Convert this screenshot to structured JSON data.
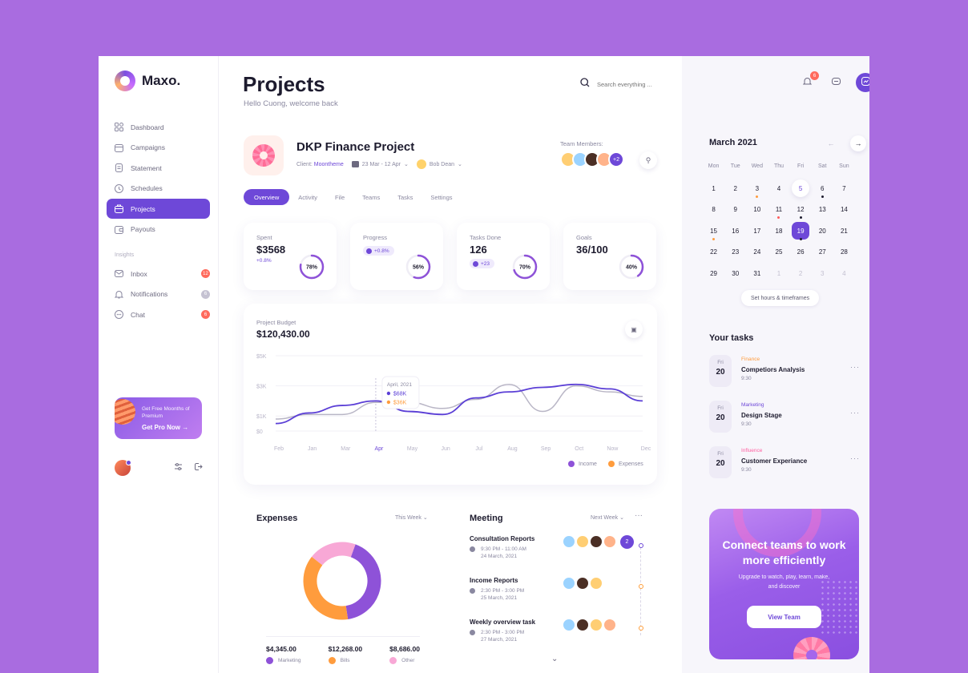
{
  "app": {
    "logo": "Maxo."
  },
  "sidebar": {
    "items": [
      {
        "label": "Dashboard",
        "icon": "grid-icon"
      },
      {
        "label": "Campaigns",
        "icon": "calendar-icon"
      },
      {
        "label": "Statement",
        "icon": "document-icon"
      },
      {
        "label": "Schedules",
        "icon": "clock-icon"
      },
      {
        "label": "Projects",
        "icon": "briefcase-icon",
        "active": true
      },
      {
        "label": "Payouts",
        "icon": "wallet-icon"
      }
    ],
    "section_label": "Insights",
    "insights": [
      {
        "label": "Inbox",
        "icon": "mail-icon",
        "badge": "12",
        "badge_color": "#ff6a5c"
      },
      {
        "label": "Notifications",
        "icon": "bell-icon",
        "badge": "6",
        "badge_color": "#c5c2d2"
      },
      {
        "label": "Chat",
        "icon": "chat-icon",
        "badge": "6",
        "badge_color": "#ff6a5c"
      }
    ],
    "promo": {
      "subtitle": "Get Free Moonths of Premium",
      "cta": "Get Pro Now"
    }
  },
  "header": {
    "title": "Projects",
    "subtitle": "Hello Cuong, welcome back",
    "search_placeholder": "Search everything ..."
  },
  "project": {
    "name": "DKP Finance Project",
    "client_label": "Client:",
    "client": "Moontheme",
    "date_range": "23 Mar - 12 Apr",
    "owner": "Bob Dean",
    "team_label": "Team Members:",
    "team_more": "+2"
  },
  "tabs": [
    "Overview",
    "Activity",
    "File",
    "Teams",
    "Tasks",
    "Settings"
  ],
  "stats": [
    {
      "label": "Spent",
      "value": "$3568",
      "delta": "+0.8%",
      "ring": "78%",
      "pct": 78
    },
    {
      "label": "Progress",
      "chip": "+0.8%",
      "ring": "56%",
      "pct": 56
    },
    {
      "label": "Tasks Done",
      "value": "126",
      "chip": "+23",
      "ring": "70%",
      "pct": 70
    },
    {
      "label": "Goals",
      "value": "36/100",
      "ring": "40%",
      "pct": 40
    }
  ],
  "budget": {
    "label": "Project Budget",
    "value": "$120,430.00",
    "tooltip": {
      "date": "April, 2021",
      "income": "$68K",
      "expenses": "$36K"
    },
    "legend": {
      "income": "Income",
      "expenses": "Expenses"
    }
  },
  "chart_data": {
    "type": "line",
    "x": [
      "Feb",
      "Jan",
      "Mar",
      "Apr",
      "May",
      "Jun",
      "Jul",
      "Aug",
      "Sep",
      "Oct",
      "Now",
      "Dec"
    ],
    "yticks": [
      "$5K",
      "$3K",
      "$1K",
      "$0"
    ],
    "ylim": [
      0,
      5
    ],
    "series": [
      {
        "name": "Income",
        "color": "#5b3fd6",
        "values": [
          0.5,
          1.2,
          1.7,
          2.0,
          1.3,
          1.1,
          2.2,
          2.6,
          2.9,
          3.1,
          2.8,
          2.0
        ]
      },
      {
        "name": "Expenses",
        "color": "#b9b6c6",
        "values": [
          0.8,
          1.1,
          1.1,
          1.9,
          1.9,
          1.5,
          2.1,
          3.1,
          1.3,
          3.0,
          2.6,
          2.3
        ]
      }
    ]
  },
  "expenses": {
    "title": "Expenses",
    "period": "This Week",
    "items": [
      {
        "value": "$4,345.00",
        "label": "Marketing",
        "color": "#8e52d8",
        "share": 0.42
      },
      {
        "value": "$12,268.00",
        "label": "Bills",
        "color": "#ff9c3d",
        "share": 0.38
      },
      {
        "value": "$8,686.00",
        "label": "Other",
        "color": "#f8a8d6",
        "share": 0.2
      }
    ]
  },
  "meeting": {
    "title": "Meeting",
    "period": "Next Week",
    "items": [
      {
        "name": "Consultation Reports",
        "time": "9:30 PM - 11:00 AM",
        "date": "24 March, 2021",
        "more": "2"
      },
      {
        "name": "Income Reports",
        "time": "2:30 PM - 3:00 PM",
        "date": "25 March, 2021"
      },
      {
        "name": "Weekly overview task",
        "time": "2:30 PM - 3:00 PM",
        "date": "27 March, 2021"
      }
    ]
  },
  "topbar": {
    "notif_badge": "6",
    "profile_badge": "6"
  },
  "calendar": {
    "title": "March 2021",
    "weekdays": [
      "Mon",
      "Tue",
      "Wed",
      "Thu",
      "Fri",
      "Sat",
      "Sun"
    ],
    "days": [
      "1",
      "2",
      "3",
      "4",
      "5",
      "6",
      "7",
      "8",
      "9",
      "10",
      "11",
      "12",
      "13",
      "14",
      "15",
      "16",
      "17",
      "18",
      "19",
      "20",
      "21",
      "22",
      "23",
      "24",
      "25",
      "26",
      "27",
      "28",
      "29",
      "30",
      "31",
      "1",
      "2",
      "3",
      "4"
    ],
    "cta": "Set hours & timeframes"
  },
  "tasks": {
    "title": "Your tasks",
    "items": [
      {
        "dow": "Fri",
        "day": "20",
        "category": "Finance",
        "cat_color": "#ff9c3d",
        "name": "Competiors Analysis",
        "time": "9:30"
      },
      {
        "dow": "Fri",
        "day": "20",
        "category": "Marketing",
        "cat_color": "#6e48d8",
        "name": "Design Stage",
        "time": "9:30"
      },
      {
        "dow": "Fri",
        "day": "20",
        "category": "Influence",
        "cat_color": "#ff5fa0",
        "name": "Customer Experiance",
        "time": "9:30"
      }
    ]
  },
  "connect": {
    "title": "Connect teams to work more efficiently",
    "subtitle": "Upgrade to watch, play, learn, make, and discover",
    "cta": "View Team"
  }
}
